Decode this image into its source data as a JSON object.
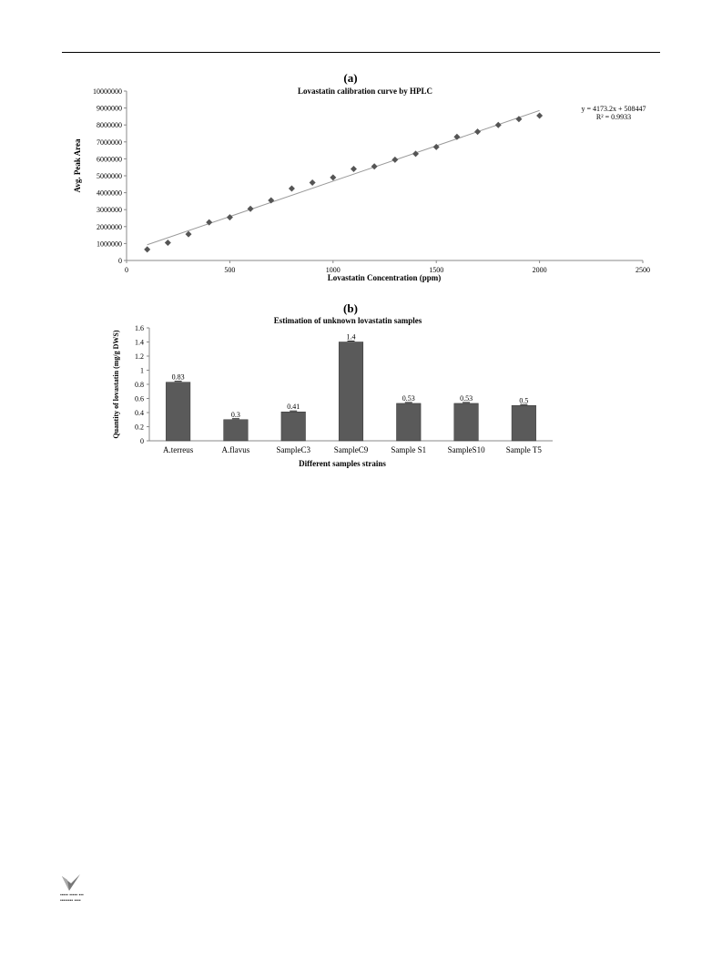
{
  "panels": {
    "a": "(a)",
    "b": "(b)"
  },
  "chart_data": [
    {
      "type": "scatter",
      "title": "Lovastatin calibration curve by HPLC",
      "xlabel": "Lovastatin Concentration (ppm)",
      "ylabel": "Avg. Peak Area",
      "xlim": [
        0,
        2500
      ],
      "ylim": [
        0,
        10000000
      ],
      "xticks": [
        0,
        500,
        1000,
        1500,
        2000,
        2500
      ],
      "yticks": [
        0,
        1000000,
        2000000,
        3000000,
        4000000,
        5000000,
        6000000,
        7000000,
        8000000,
        9000000,
        10000000
      ],
      "x": [
        100,
        200,
        300,
        400,
        500,
        600,
        700,
        800,
        900,
        1000,
        1100,
        1200,
        1300,
        1400,
        1500,
        1600,
        1700,
        1800,
        1900,
        2000
      ],
      "y": [
        650000,
        1050000,
        1550000,
        2250000,
        2550000,
        3050000,
        3550000,
        4250000,
        4600000,
        4900000,
        5400000,
        5550000,
        5950000,
        6300000,
        6700000,
        7300000,
        7600000,
        8000000,
        8350000,
        8550000
      ],
      "trendline": {
        "slope": 4173.2,
        "intercept": 508447,
        "x_range": [
          100,
          2000
        ]
      },
      "annotations": [
        "y = 4173.2x + 508447",
        "R² = 0.9933"
      ],
      "grid": false,
      "legend": "none"
    },
    {
      "type": "bar",
      "title": "Estimation of unknown lovastatin samples",
      "xlabel": "Different samples strains",
      "ylabel": "Quantity of lovastatin (mg/g DWS)",
      "categories": [
        "A.terreus",
        "A.flavus",
        "SampleC3",
        "SampleC9",
        "Sample S1",
        "SampleS10",
        "Sample T5"
      ],
      "values": [
        0.83,
        0.3,
        0.41,
        1.4,
        0.53,
        0.53,
        0.5
      ],
      "data_labels": [
        "0.83",
        "0.3",
        "0.41",
        "1.4",
        "0.53",
        "0.53",
        "0.5"
      ],
      "ylim": [
        0,
        1.6
      ],
      "yticks": [
        "0",
        "0.2",
        "0.4",
        "0.6",
        "0.8",
        "1",
        "1.2",
        "1.4",
        "1.6"
      ],
      "grid": false,
      "legend": "none",
      "bar_color": "#5a5a5a"
    }
  ]
}
